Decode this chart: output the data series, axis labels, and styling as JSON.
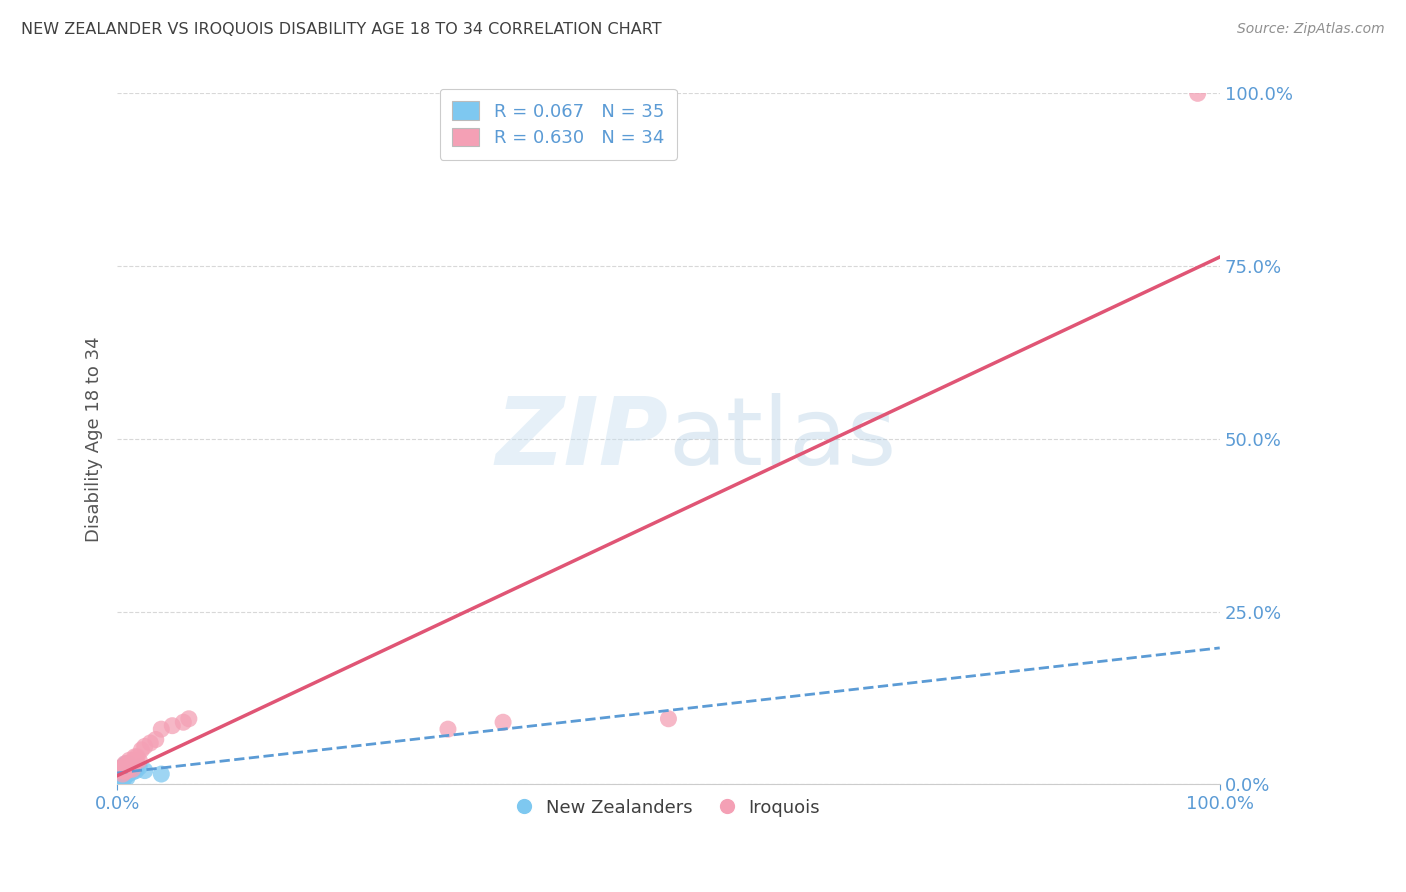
{
  "title": "NEW ZEALANDER VS IROQUOIS DISABILITY AGE 18 TO 34 CORRELATION CHART",
  "source": "Source: ZipAtlas.com",
  "ylabel": "Disability Age 18 to 34",
  "watermark": "ZIPatlas",
  "legend_nz": {
    "R": 0.067,
    "N": 35
  },
  "legend_ir": {
    "R": 0.63,
    "N": 34
  },
  "nz_color": "#7ec8f0",
  "ir_color": "#f4a0b5",
  "nz_line_color": "#5b9bd5",
  "ir_line_color": "#e05575",
  "title_color": "#404040",
  "tick_color": "#5b9bd5",
  "source_color": "#909090",
  "background_color": "#ffffff",
  "grid_color": "#d8d8d8",
  "nz_x": [
    0.002,
    0.003,
    0.003,
    0.004,
    0.004,
    0.004,
    0.005,
    0.005,
    0.005,
    0.005,
    0.006,
    0.006,
    0.006,
    0.007,
    0.007,
    0.007,
    0.007,
    0.008,
    0.008,
    0.008,
    0.009,
    0.009,
    0.01,
    0.01,
    0.01,
    0.011,
    0.011,
    0.012,
    0.013,
    0.014,
    0.015,
    0.017,
    0.02,
    0.025,
    0.04
  ],
  "nz_y": [
    0.01,
    0.008,
    0.012,
    0.005,
    0.015,
    0.02,
    0.01,
    0.018,
    0.022,
    0.025,
    0.008,
    0.015,
    0.02,
    0.012,
    0.018,
    0.022,
    0.028,
    0.015,
    0.02,
    0.03,
    0.01,
    0.025,
    0.015,
    0.02,
    0.03,
    0.018,
    0.025,
    0.02,
    0.025,
    0.018,
    0.022,
    0.02,
    0.025,
    0.02,
    0.015
  ],
  "ir_x": [
    0.003,
    0.004,
    0.005,
    0.006,
    0.006,
    0.007,
    0.007,
    0.008,
    0.008,
    0.009,
    0.009,
    0.01,
    0.01,
    0.011,
    0.012,
    0.013,
    0.014,
    0.015,
    0.016,
    0.017,
    0.018,
    0.02,
    0.022,
    0.025,
    0.03,
    0.035,
    0.04,
    0.05,
    0.06,
    0.065,
    0.3,
    0.35,
    0.5,
    0.98
  ],
  "ir_y": [
    0.02,
    0.025,
    0.015,
    0.02,
    0.025,
    0.018,
    0.03,
    0.022,
    0.028,
    0.02,
    0.025,
    0.03,
    0.025,
    0.035,
    0.025,
    0.03,
    0.022,
    0.035,
    0.04,
    0.035,
    0.04,
    0.035,
    0.05,
    0.055,
    0.06,
    0.065,
    0.08,
    0.085,
    0.09,
    0.095,
    0.08,
    0.09,
    0.095,
    1.0
  ],
  "xlim": [
    0.0,
    1.0
  ],
  "ylim": [
    0.0,
    1.0
  ],
  "yticks": [
    0.0,
    0.25,
    0.5,
    0.75,
    1.0
  ],
  "ytick_labels": [
    "0.0%",
    "25.0%",
    "50.0%",
    "75.0%",
    "100.0%"
  ],
  "xtick_labels_pos": [
    0.0,
    1.0
  ],
  "xtick_labels_val": [
    "0.0%",
    "100.0%"
  ]
}
